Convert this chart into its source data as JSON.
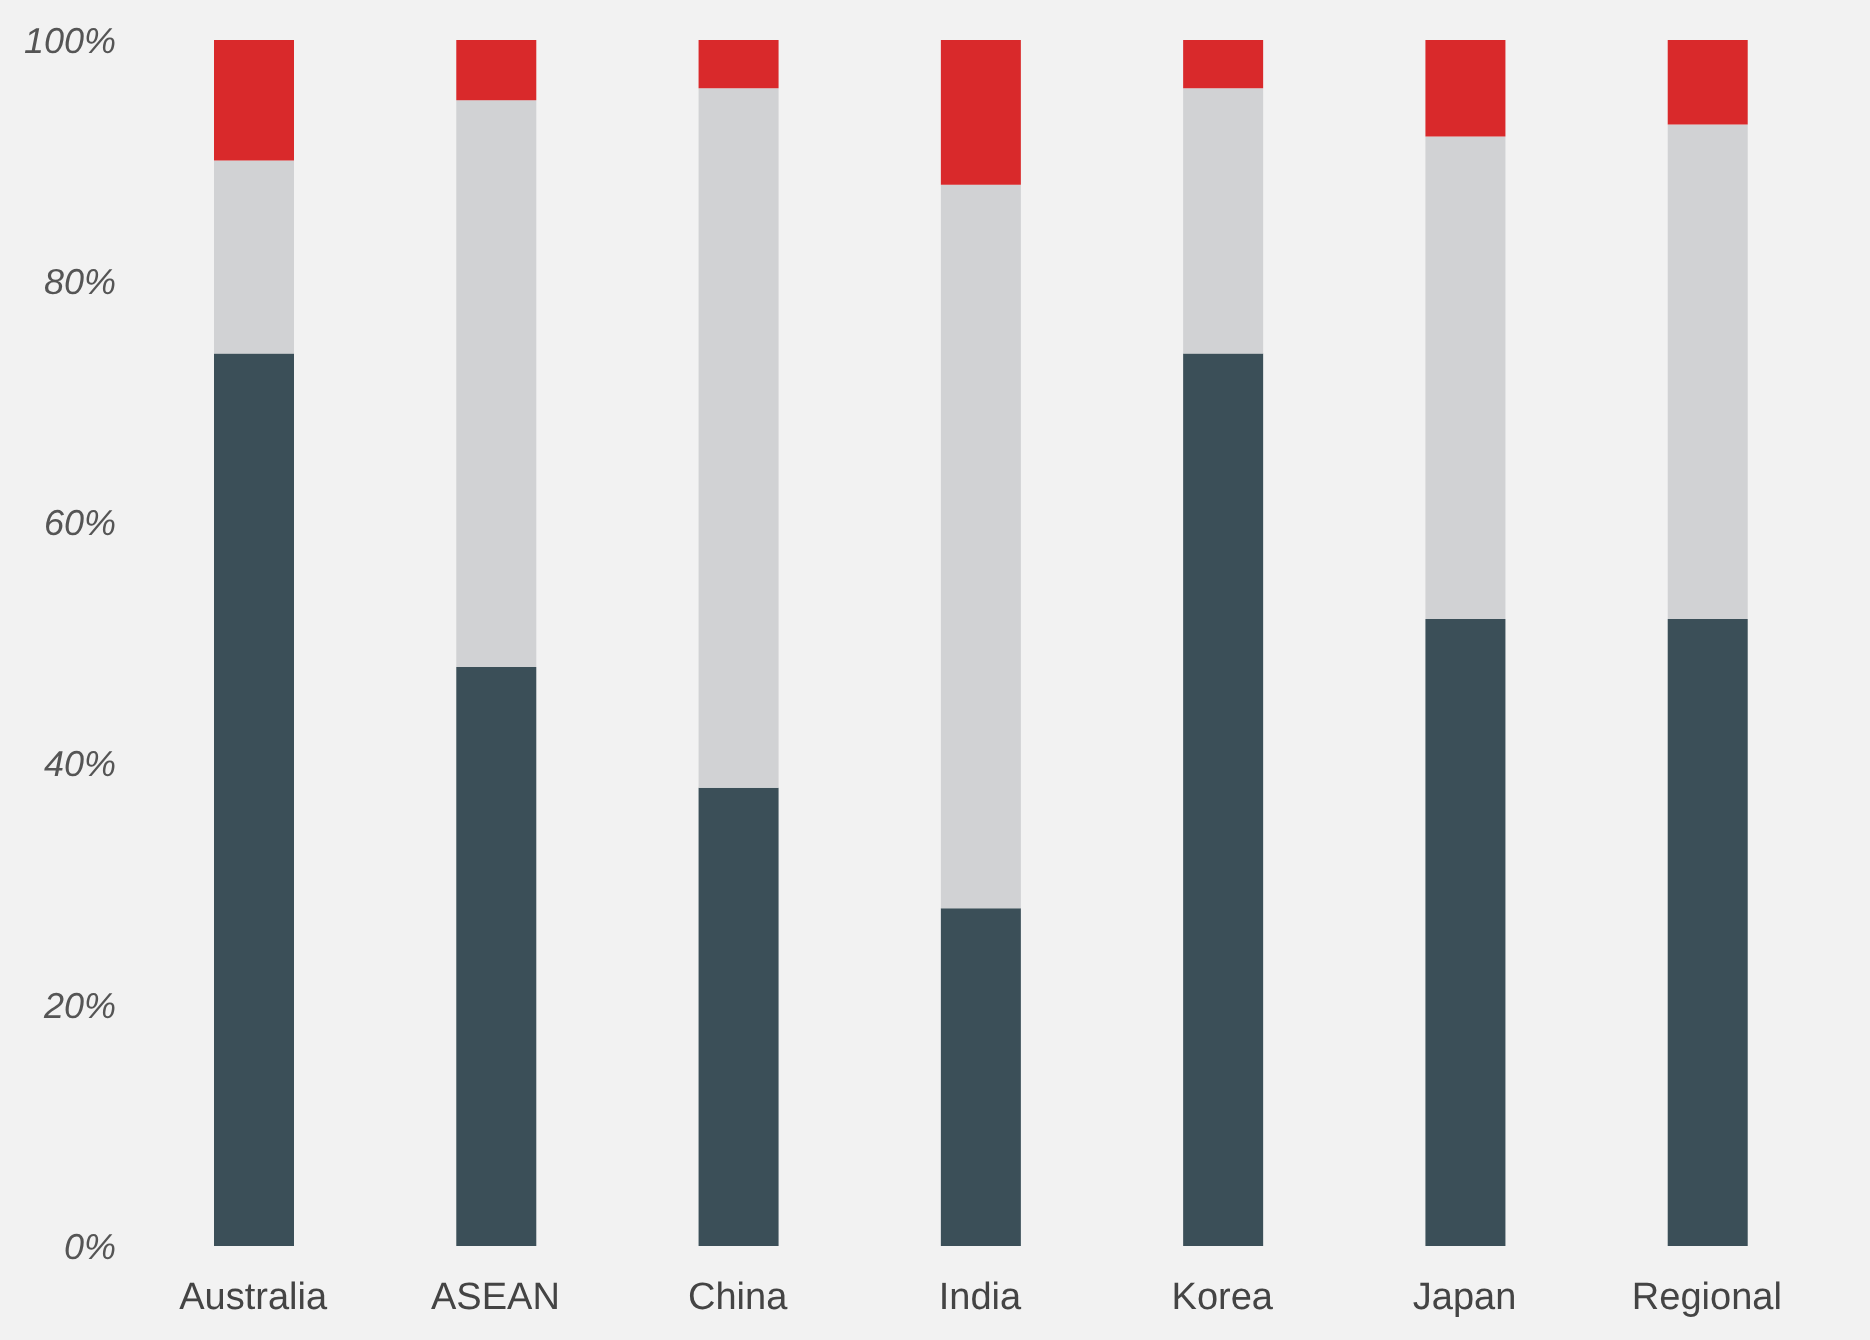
{
  "chart_data": {
    "type": "bar",
    "stacked": true,
    "categories": [
      "Australia",
      "ASEAN",
      "China",
      "India",
      "Korea",
      "Japan",
      "Regional"
    ],
    "series": [
      {
        "color": "#3b4f58",
        "values": [
          74,
          48,
          38,
          28,
          74,
          52,
          52
        ]
      },
      {
        "color": "#d1d2d4",
        "values": [
          16,
          47,
          58,
          60,
          22,
          40,
          41
        ]
      },
      {
        "color": "#d9292b",
        "values": [
          10,
          5,
          4,
          12,
          4,
          8,
          7
        ]
      }
    ],
    "ylim": [
      0,
      100
    ],
    "yticks": [
      {
        "value": 0,
        "label": "0%"
      },
      {
        "value": 20,
        "label": "20%"
      },
      {
        "value": 40,
        "label": "40%"
      },
      {
        "value": 60,
        "label": "60%"
      },
      {
        "value": 80,
        "label": "80%"
      },
      {
        "value": 100,
        "label": "100%"
      }
    ],
    "grid": false,
    "legend": false
  }
}
